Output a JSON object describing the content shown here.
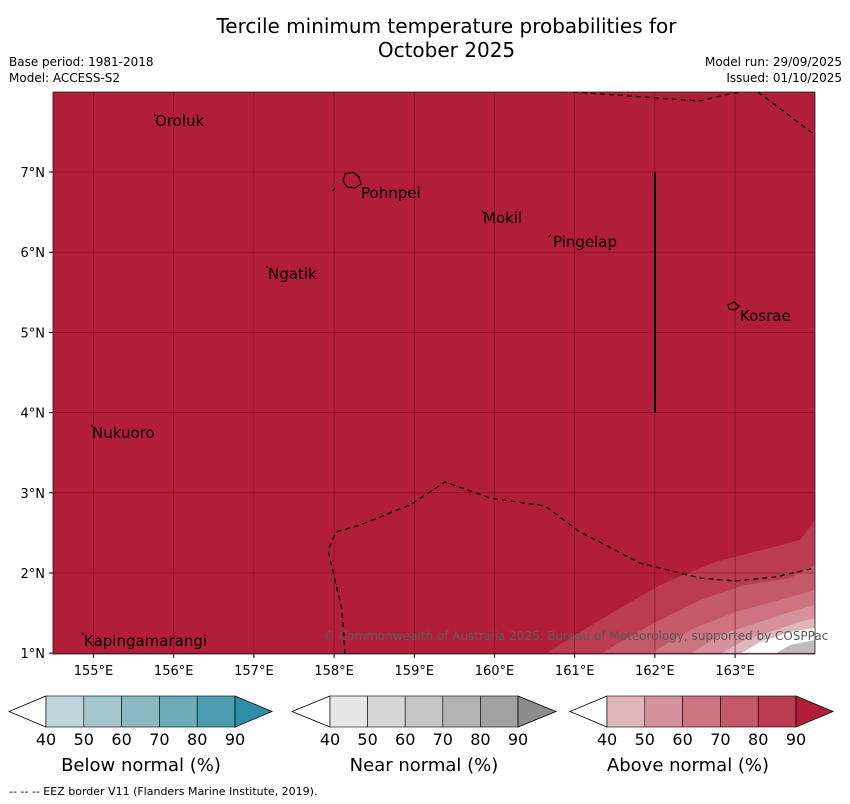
{
  "title": {
    "line1": "Tercile minimum temperature probabilities for",
    "line2": "October 2025"
  },
  "meta": {
    "base_period": "Base period: 1981-2018",
    "model": "Model: ACCESS-S2",
    "model_run": "Model run: 29/09/2025",
    "issued": "Issued: 01/10/2025"
  },
  "colors": {
    "map_fill": "#b21e39",
    "grid": "#7a1020"
  },
  "map": {
    "x_ticks": [
      "155°E",
      "156°E",
      "157°E",
      "158°E",
      "159°E",
      "160°E",
      "161°E",
      "162°E",
      "163°E"
    ],
    "y_ticks": [
      "7°N",
      "6°N",
      "5°N",
      "4°N",
      "3°N",
      "2°N",
      "1°N"
    ],
    "places": [
      "Oroluk",
      "Pohnpei",
      "Mokil",
      "Pingelap",
      "Ngatik",
      "Kosrae",
      "Nukuoro",
      "Kapingamarangi"
    ],
    "copyright": "© Commonwealth of Australia 2025, Bureau of Meteorology, supported by COSPPac"
  },
  "legend": {
    "ticks": [
      "40",
      "50",
      "60",
      "70",
      "80",
      "90"
    ],
    "below": {
      "label": "Below normal (%)",
      "colors": [
        "#ffffff",
        "#bfd5dc",
        "#a5c8cf",
        "#8ab9c3",
        "#6cacb8",
        "#4d9db0",
        "#2d8fa6"
      ]
    },
    "near": {
      "label": "Near normal (%)",
      "colors": [
        "#ffffff",
        "#e6e6e6",
        "#d6d6d6",
        "#c6c6c6",
        "#b2b2b2",
        "#a2a2a2",
        "#8c8c8c"
      ]
    },
    "above": {
      "label": "Above normal (%)",
      "colors": [
        "#ffffff",
        "#e0b6bd",
        "#d6929c",
        "#cd7480",
        "#c45a69",
        "#bb3b50",
        "#b21e39"
      ]
    }
  },
  "footnote": "--  --  -- EEZ border V11 (Flanders Marine Institute, 2019)."
}
